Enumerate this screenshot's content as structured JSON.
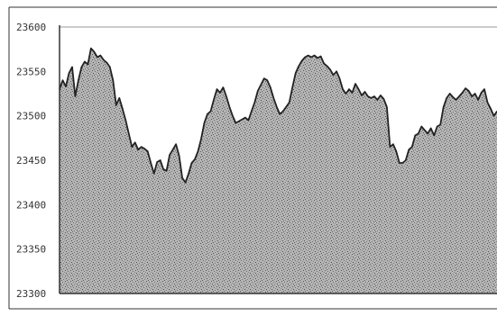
{
  "chart_data": {
    "type": "area",
    "title": "",
    "xlabel": "",
    "ylabel": "",
    "ylim": [
      23300,
      23600
    ],
    "yticks": [
      "23600",
      "23550",
      "23500",
      "23450",
      "23400",
      "23350",
      "23300"
    ],
    "grid": false,
    "legend": "none",
    "colors": {
      "fill": "#9a9a9a",
      "line": "#222222",
      "axis": "#333333",
      "background": "#ffffff"
    },
    "series": [
      {
        "values": [
          23530,
          23540,
          23533,
          23548,
          23555,
          23522,
          23540,
          23555,
          23561,
          23558,
          23576,
          23572,
          23566,
          23568,
          23563,
          23560,
          23555,
          23540,
          23512,
          23520,
          23508,
          23495,
          23480,
          23465,
          23470,
          23462,
          23465,
          23463,
          23460,
          23447,
          23435,
          23448,
          23450,
          23440,
          23438,
          23456,
          23462,
          23468,
          23455,
          23430,
          23425,
          23435,
          23447,
          23451,
          23460,
          23474,
          23492,
          23502,
          23505,
          23518,
          23530,
          23526,
          23532,
          23522,
          23510,
          23500,
          23492,
          23494,
          23496,
          23498,
          23495,
          23505,
          23515,
          23528,
          23535,
          23542,
          23540,
          23532,
          23520,
          23510,
          23502,
          23505,
          23510,
          23515,
          23532,
          23548,
          23556,
          23562,
          23566,
          23568,
          23566,
          23568,
          23565,
          23567,
          23559,
          23556,
          23552,
          23546,
          23550,
          23542,
          23530,
          23525,
          23530,
          23526,
          23536,
          23530,
          23523,
          23527,
          23522,
          23520,
          23522,
          23518,
          23523,
          23519,
          23510,
          23465,
          23468,
          23460,
          23447,
          23447,
          23450,
          23462,
          23465,
          23478,
          23480,
          23488,
          23484,
          23480,
          23486,
          23478,
          23488,
          23490,
          23510,
          23520,
          23525,
          23521,
          23518,
          23522,
          23526,
          23531,
          23528,
          23522,
          23525,
          23518,
          23526,
          23530,
          23515,
          23508,
          23500,
          23505
        ]
      }
    ]
  }
}
